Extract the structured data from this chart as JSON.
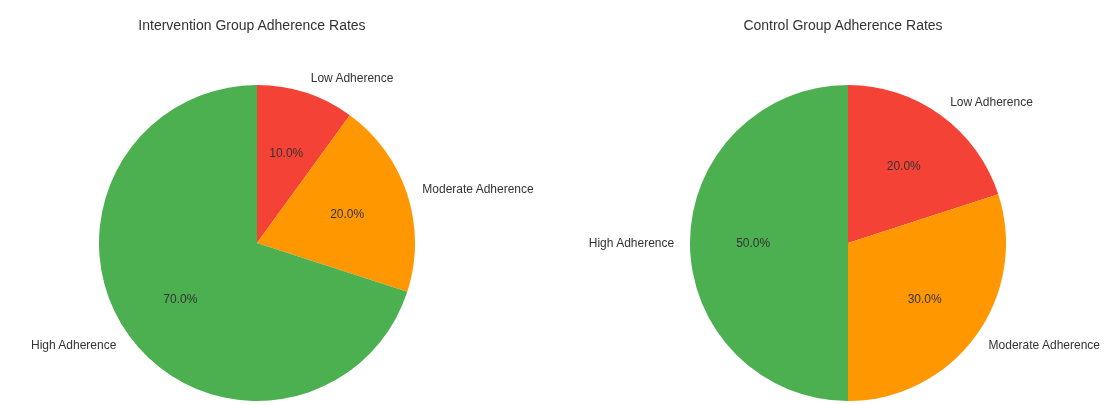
{
  "chart_data": [
    {
      "type": "pie",
      "title": "Intervention Group Adherence Rates",
      "categories": [
        "Low Adherence",
        "Moderate Adherence",
        "High Adherence"
      ],
      "values": [
        10,
        20,
        70
      ],
      "colors": [
        "#f44336",
        "#ff9800",
        "#4caf50"
      ],
      "value_labels": [
        "10.0%",
        "20.0%",
        "70.0%"
      ]
    },
    {
      "type": "pie",
      "title": "Control Group Adherence Rates",
      "categories": [
        "Low Adherence",
        "Moderate Adherence",
        "High Adherence"
      ],
      "values": [
        20,
        30,
        50
      ],
      "colors": [
        "#f44336",
        "#ff9800",
        "#4caf50"
      ],
      "value_labels": [
        "20.0%",
        "30.0%",
        "50.0%"
      ]
    }
  ]
}
